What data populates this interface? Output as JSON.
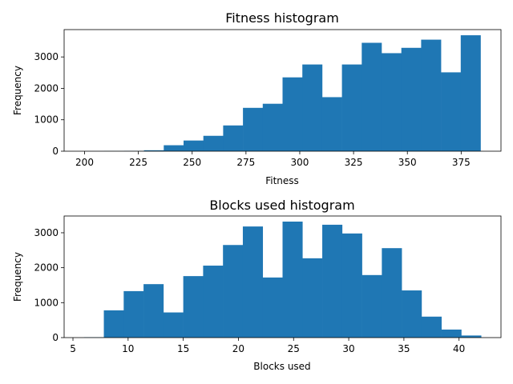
{
  "chart_data": [
    {
      "type": "bar",
      "subtype": "histogram",
      "title": "Fitness histogram",
      "xlabel": "Fitness",
      "ylabel": "Frequency",
      "xlim": [
        190.5,
        393.5
      ],
      "ylim": [
        0,
        3870
      ],
      "xticks": [
        200,
        225,
        250,
        275,
        300,
        325,
        350,
        375
      ],
      "yticks": [
        0,
        1000,
        2000,
        3000
      ],
      "bar_color": "#1f77b4",
      "bin_edges": [
        200,
        209.2,
        218.4,
        227.6,
        236.8,
        246,
        255.2,
        264.4,
        273.6,
        282.8,
        292,
        301.2,
        310.4,
        319.6,
        328.8,
        338,
        347.2,
        356.4,
        365.6,
        374.8,
        384
      ],
      "values": [
        2,
        5,
        10,
        30,
        190,
        340,
        490,
        820,
        1380,
        1510,
        2350,
        2760,
        1720,
        2760,
        3450,
        3120,
        3290,
        3550,
        2510,
        3690
      ]
    },
    {
      "type": "bar",
      "subtype": "histogram",
      "title": "Blocks used histogram",
      "xlabel": "Blocks used",
      "ylabel": "Frequency",
      "xlim": [
        4.2,
        43.8
      ],
      "ylim": [
        0,
        3480
      ],
      "xticks": [
        5,
        10,
        15,
        20,
        25,
        30,
        35,
        40
      ],
      "yticks": [
        0,
        1000,
        2000,
        3000
      ],
      "bar_color": "#1f77b4",
      "bin_edges": [
        6,
        7.8,
        9.6,
        11.4,
        13.2,
        15,
        16.8,
        18.6,
        20.4,
        22.2,
        24,
        25.8,
        27.6,
        29.4,
        31.2,
        33,
        34.8,
        36.6,
        38.4,
        40.2,
        42
      ],
      "values": [
        10,
        780,
        1330,
        1530,
        720,
        1760,
        2060,
        2650,
        3180,
        1720,
        3320,
        2270,
        3230,
        2980,
        1790,
        2560,
        1350,
        600,
        230,
        60
      ]
    }
  ]
}
